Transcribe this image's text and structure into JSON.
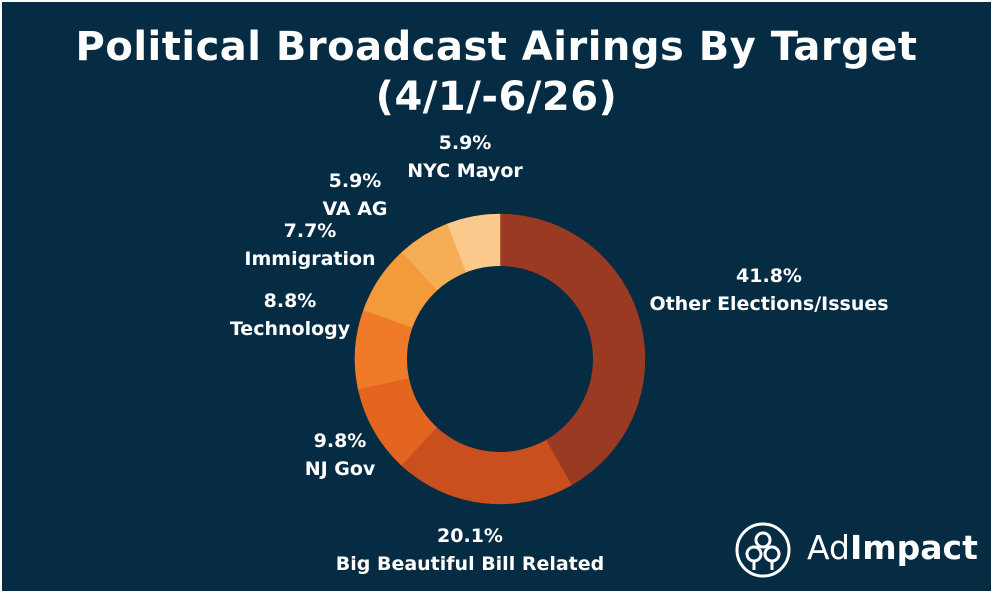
{
  "title": {
    "line1": "Political Broadcast Airings By Target",
    "line2": "(4/1/-6/26)"
  },
  "brand": {
    "name_light": "Ad",
    "name_bold": "Impact",
    "icon": "adimpact-logo-icon"
  },
  "colors": {
    "background": "#062c43",
    "text": "#ffffff",
    "hole": "#062c43"
  },
  "chart_data": {
    "type": "pie",
    "variant": "donut",
    "title": "Political Broadcast Airings By Target (4/1/-6/26)",
    "legend": "none",
    "start": "top",
    "direction": "clockwise",
    "slices": [
      {
        "label": "Other Elections/Issues",
        "value": 41.8,
        "display": "41.8%",
        "color": "#9a3a22"
      },
      {
        "label": "Big Beautiful Bill Related",
        "value": 20.1,
        "display": "20.1%",
        "color": "#c9501e"
      },
      {
        "label": "NJ Gov",
        "value": 9.8,
        "display": "9.8%",
        "color": "#e4651f"
      },
      {
        "label": "Technology",
        "value": 8.8,
        "display": "8.8%",
        "color": "#ef7b2a"
      },
      {
        "label": "Immigration",
        "value": 7.7,
        "display": "7.7%",
        "color": "#f39a3b"
      },
      {
        "label": "VA AG",
        "value": 5.9,
        "display": "5.9%",
        "color": "#f6ae56"
      },
      {
        "label": "NYC Mayor",
        "value": 5.9,
        "display": "5.9%",
        "color": "#fac98b"
      }
    ]
  }
}
